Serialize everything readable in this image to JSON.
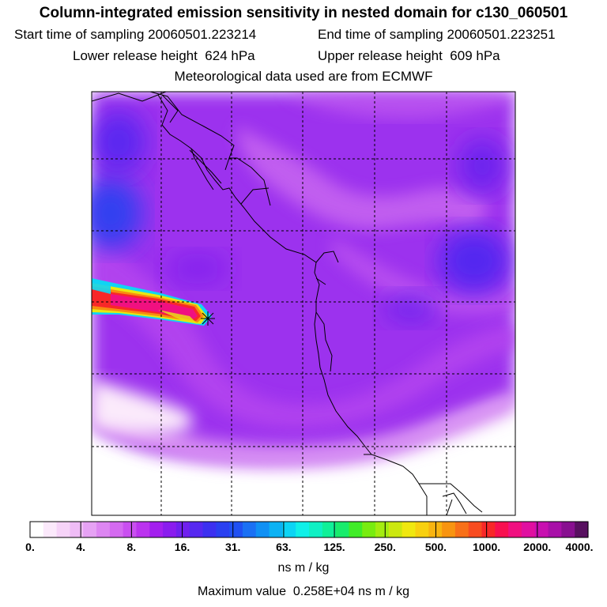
{
  "header": {
    "title": "Column-integrated emission sensitivity in nested domain for c130_060501",
    "start_label": "Start time of sampling",
    "start_value": "20060501.223214",
    "end_label": "End time of sampling",
    "end_value": "20060501.223251",
    "lower_label": "Lower release height",
    "lower_value": "624 hPa",
    "upper_label": "Upper release height",
    "upper_value": "609 hPa",
    "met_text": "Meteorological data used are from ECMWF"
  },
  "colorbar": {
    "tick_labels": [
      "0.",
      "4.",
      "8.",
      "16.",
      "31.",
      "63.",
      "125.",
      "250.",
      "500.",
      "1000.",
      "2000.",
      "4000."
    ],
    "colors": [
      "#ffffff",
      "#fbe9fb",
      "#f6d3f8",
      "#efbcf6",
      "#e6a2f4",
      "#dd86f2",
      "#d46af0",
      "#c94ff0",
      "#bb33ef",
      "#a31fee",
      "#8a1cee",
      "#7020ee",
      "#5628f0",
      "#3c30f0",
      "#2a40f0",
      "#2050f2",
      "#1a70f4",
      "#1090f4",
      "#0cb2f4",
      "#0cd4f4",
      "#10f0e8",
      "#10f0c4",
      "#10f098",
      "#18ec6c",
      "#40ec28",
      "#78ec10",
      "#a4ec10",
      "#cce810",
      "#f0e810",
      "#f8d010",
      "#f8b410",
      "#f89410",
      "#f87018",
      "#f84c20",
      "#f82828",
      "#f81050",
      "#f01080",
      "#e010a0",
      "#c810b0",
      "#a810a8",
      "#881090",
      "#581060"
    ],
    "units": "ns m / kg"
  },
  "max_label": "Maximum value",
  "max_value": "0.258E+04 ns m / kg"
}
